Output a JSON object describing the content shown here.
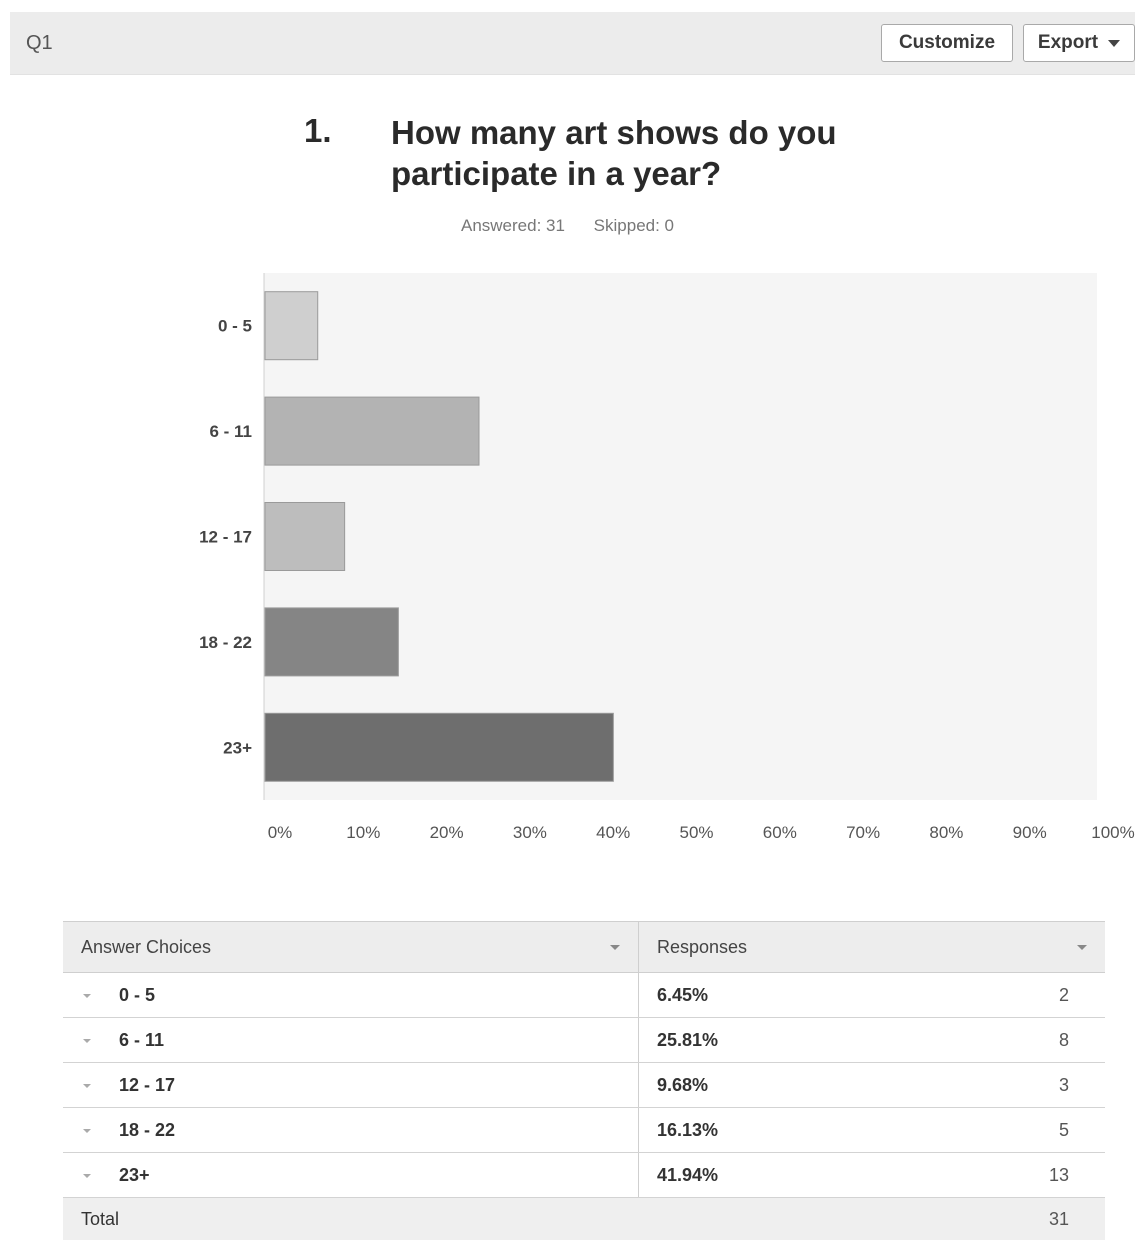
{
  "header": {
    "question_id": "Q1",
    "customize_label": "Customize",
    "export_label": "Export"
  },
  "question": {
    "number": "1.",
    "text": "How many art shows do you participate in a year?",
    "answered": "Answered: 31",
    "skipped": "Skipped: 0"
  },
  "chart_data": {
    "type": "bar",
    "orientation": "horizontal",
    "categories": [
      "0 - 5",
      "6 - 11",
      "12 - 17",
      "18 - 22",
      "23+"
    ],
    "values": [
      6.45,
      25.81,
      9.68,
      16.13,
      41.94
    ],
    "xlim": [
      0,
      100
    ],
    "x_ticks": [
      "0%",
      "10%",
      "20%",
      "30%",
      "40%",
      "50%",
      "60%",
      "70%",
      "80%",
      "90%",
      "100%"
    ],
    "colors": [
      "#cfcfcf",
      "#b3b3b3",
      "#bdbdbd",
      "#858585",
      "#6e6e6e"
    ],
    "plot_background": "#f5f5f5",
    "grid": false
  },
  "table": {
    "headers": [
      "Answer Choices",
      "Responses"
    ],
    "rows": [
      {
        "choice": "0 - 5",
        "percent": "6.45%",
        "count": "2"
      },
      {
        "choice": "6 - 11",
        "percent": "25.81%",
        "count": "8"
      },
      {
        "choice": "12 - 17",
        "percent": "9.68%",
        "count": "3"
      },
      {
        "choice": "18 - 22",
        "percent": "16.13%",
        "count": "5"
      },
      {
        "choice": "23+",
        "percent": "41.94%",
        "count": "13"
      }
    ],
    "total_label": "Total",
    "total_count": "31"
  }
}
